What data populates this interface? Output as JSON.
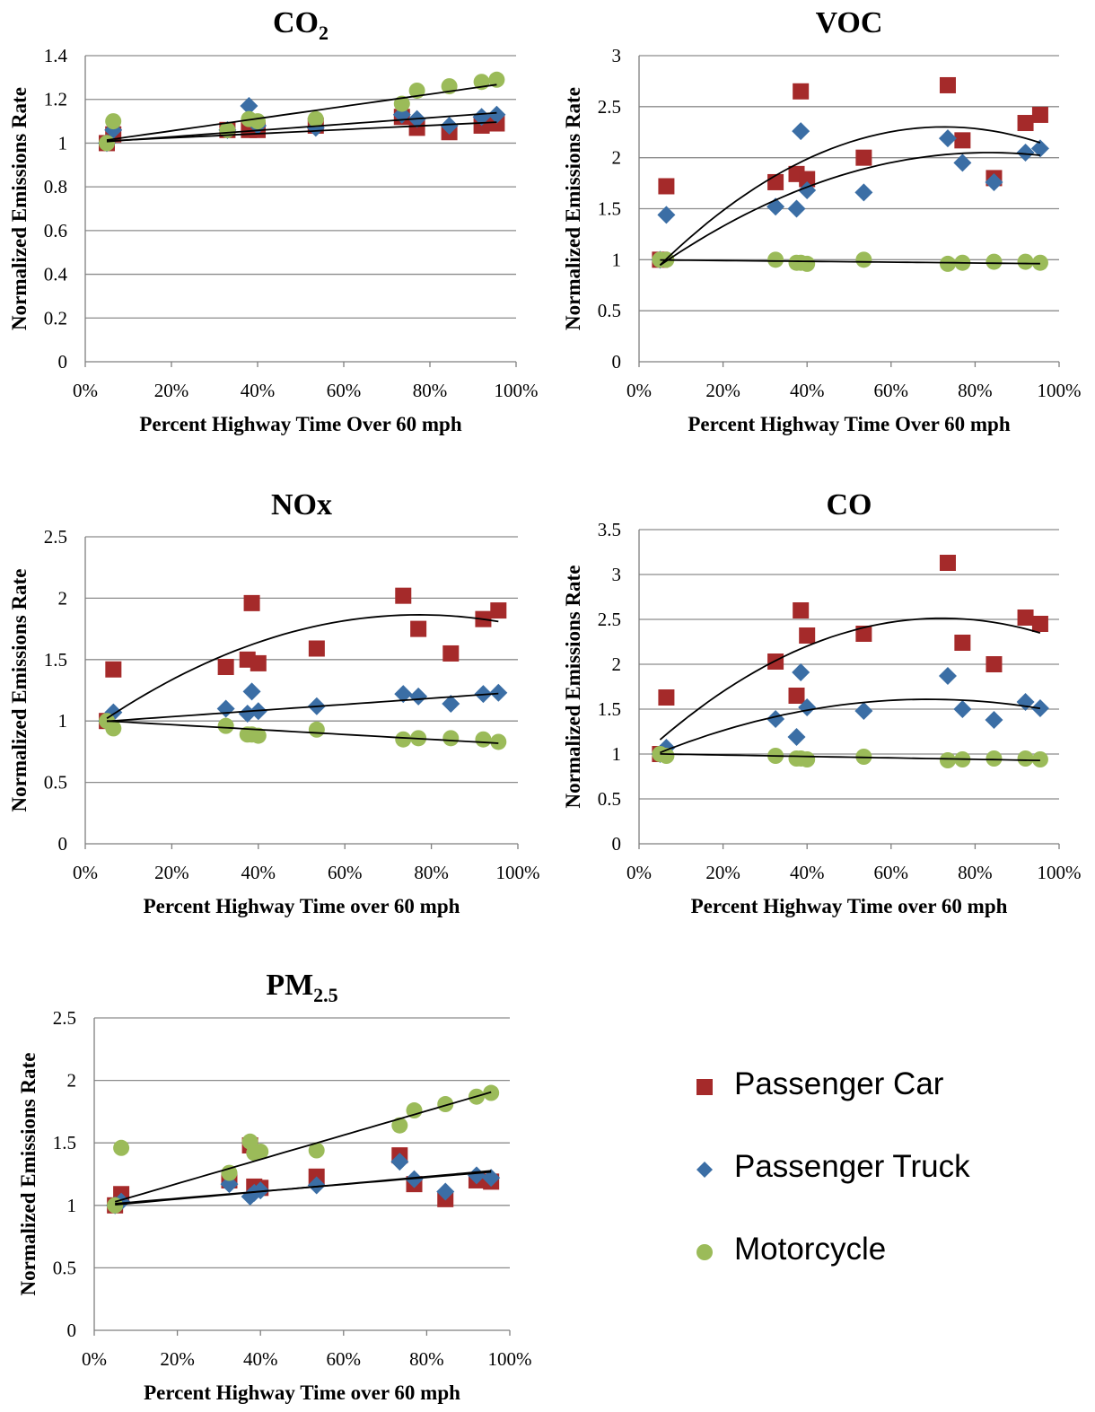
{
  "colors": {
    "car": "#a52a2a",
    "truck": "#3b6ea5",
    "moto": "#9bbb59",
    "grid": "#8c8c8c",
    "trend": "#000000"
  },
  "legend": {
    "items": [
      {
        "key": "car",
        "label": "Passenger Car",
        "shape": "square"
      },
      {
        "key": "truck",
        "label": "Passenger Truck",
        "shape": "diamond"
      },
      {
        "key": "moto",
        "label": "Motorcycle",
        "shape": "circle"
      }
    ]
  },
  "chart_data": [
    {
      "type": "scatter",
      "title": "CO",
      "title_sub": "2",
      "xlabel": "Percent Highway Time Over 60 mph",
      "ylabel": "Normalized Emissions Rate",
      "xlim": [
        0,
        100
      ],
      "ylim": [
        0,
        1.4
      ],
      "ystep": 0.2,
      "xticks": [
        "0%",
        "20%",
        "40%",
        "60%",
        "80%",
        "100%"
      ],
      "yticks": [
        "0",
        "0.2",
        "0.4",
        "0.6",
        "0.8",
        "1",
        "1.2",
        "1.4"
      ],
      "x": [
        5,
        6.5,
        33,
        38,
        40,
        53.5,
        73.5,
        77,
        84.5,
        92,
        95.5
      ],
      "series": [
        {
          "name": "Passenger Car",
          "key": "car",
          "y": [
            1.0,
            1.04,
            1.06,
            1.06,
            1.06,
            1.08,
            1.12,
            1.07,
            1.05,
            1.08,
            1.09
          ],
          "trend": [
            1.005,
            0.095,
            0
          ]
        },
        {
          "name": "Passenger Truck",
          "key": "truck",
          "y": [
            1.0,
            1.06,
            1.06,
            1.17,
            1.08,
            1.07,
            1.13,
            1.11,
            1.08,
            1.12,
            1.13
          ],
          "trend": [
            1.0,
            0.145,
            0
          ]
        },
        {
          "name": "Motorcycle",
          "key": "moto",
          "y": [
            1.0,
            1.1,
            1.06,
            1.11,
            1.1,
            1.11,
            1.18,
            1.24,
            1.26,
            1.28,
            1.29
          ],
          "trend": [
            1.0,
            0.28,
            0
          ]
        }
      ]
    },
    {
      "type": "scatter",
      "title": "VOC",
      "title_sub": "",
      "xlabel": "Percent Highway Time Over 60 mph",
      "ylabel": "Normalized Emissions Rate",
      "xlim": [
        0,
        100
      ],
      "ylim": [
        0,
        3
      ],
      "ystep": 0.5,
      "xticks": [
        "0%",
        "20%",
        "40%",
        "60%",
        "80%",
        "100%"
      ],
      "yticks": [
        "0",
        "0.5",
        "1",
        "1.5",
        "2",
        "2.5",
        "3"
      ],
      "x": [
        5,
        6.5,
        32.5,
        37.5,
        38.5,
        40,
        53.5,
        73.5,
        77,
        84.5,
        92,
        95.5
      ],
      "series": [
        {
          "name": "Passenger Car",
          "key": "car",
          "y": [
            1.0,
            1.72,
            1.76,
            1.84,
            2.65,
            1.79,
            2.0,
            2.71,
            2.17,
            1.8,
            2.34,
            2.42
          ],
          "trend": [
            0.74,
            4.3,
            -2.96
          ]
        },
        {
          "name": "Passenger Truck",
          "key": "truck",
          "y": [
            1.0,
            1.44,
            1.52,
            1.5,
            2.26,
            1.68,
            1.66,
            2.19,
            1.95,
            1.76,
            2.05,
            2.09
          ],
          "trend": [
            0.8,
            3.0,
            -1.8
          ]
        },
        {
          "name": "Motorcycle",
          "key": "moto",
          "y": [
            1.0,
            1.0,
            1.0,
            0.97,
            0.97,
            0.96,
            1.0,
            0.96,
            0.97,
            0.98,
            0.98,
            0.97
          ],
          "trend": [
            1.0,
            -0.04,
            0
          ]
        }
      ]
    },
    {
      "type": "scatter",
      "title": "NOx",
      "title_sub": "",
      "xlabel": "Percent Highway Time over 60 mph",
      "ylabel": "Normalized Emissions Rate",
      "xlim": [
        0,
        100
      ],
      "ylim": [
        0,
        2.5
      ],
      "ystep": 0.5,
      "xticks": [
        "0%",
        "20%",
        "40%",
        "60%",
        "80%",
        "100%"
      ],
      "yticks": [
        "0",
        "0.5",
        "1",
        "1.5",
        "2",
        "2.5"
      ],
      "x": [
        5,
        6.5,
        32.5,
        37.5,
        38.5,
        40,
        53.5,
        73.5,
        77,
        84.5,
        92,
        95.5
      ],
      "series": [
        {
          "name": "Passenger Car",
          "key": "car",
          "y": [
            1.0,
            1.42,
            1.44,
            1.5,
            1.96,
            1.47,
            1.59,
            2.02,
            1.75,
            1.55,
            1.83,
            1.9
          ],
          "trend": [
            0.9,
            2.5,
            -1.62
          ]
        },
        {
          "name": "Passenger Truck",
          "key": "truck",
          "y": [
            1.0,
            1.07,
            1.1,
            1.06,
            1.24,
            1.08,
            1.12,
            1.22,
            1.2,
            1.14,
            1.22,
            1.23
          ],
          "trend": [
            0.985,
            0.25,
            0
          ]
        },
        {
          "name": "Motorcycle",
          "key": "moto",
          "y": [
            1.0,
            0.94,
            0.96,
            0.89,
            0.89,
            0.88,
            0.93,
            0.85,
            0.86,
            0.86,
            0.85,
            0.83
          ],
          "trend": [
            1.01,
            -0.2,
            0
          ]
        }
      ]
    },
    {
      "type": "scatter",
      "title": "CO",
      "title_sub": "",
      "xlabel": "Percent Highway Time over 60 mph",
      "ylabel": "Normalized Emissions Rate",
      "xlim": [
        0,
        100
      ],
      "ylim": [
        0,
        3.5
      ],
      "ystep": 0.5,
      "xticks": [
        "0%",
        "20%",
        "40%",
        "60%",
        "80%",
        "100%"
      ],
      "yticks": [
        "0",
        "0.5",
        "1",
        "1.5",
        "2",
        "2.5",
        "3",
        "3.5"
      ],
      "x": [
        5,
        6.5,
        32.5,
        37.5,
        38.5,
        40,
        53.5,
        73.5,
        77,
        84.5,
        92,
        95.5
      ],
      "series": [
        {
          "name": "Passenger Car",
          "key": "car",
          "y": [
            1.0,
            1.63,
            2.03,
            1.65,
            2.6,
            2.32,
            2.34,
            3.13,
            2.24,
            2.0,
            2.52,
            2.45
          ],
          "trend": [
            0.95,
            4.33,
            -3.0
          ]
        },
        {
          "name": "Passenger Truck",
          "key": "truck",
          "y": [
            1.0,
            1.07,
            1.39,
            1.19,
            1.91,
            1.52,
            1.48,
            1.87,
            1.5,
            1.38,
            1.58,
            1.51
          ],
          "trend": [
            0.92,
            2.0,
            -1.45
          ]
        },
        {
          "name": "Motorcycle",
          "key": "moto",
          "y": [
            1.0,
            0.98,
            0.98,
            0.95,
            0.95,
            0.94,
            0.97,
            0.93,
            0.94,
            0.95,
            0.95,
            0.94
          ],
          "trend": [
            1.005,
            -0.08,
            0
          ]
        }
      ]
    },
    {
      "type": "scatter",
      "title": "PM",
      "title_sub": "2.5",
      "xlabel": "Percent Highway Time over 60 mph",
      "ylabel": "Normalized Emissions Rate",
      "xlim": [
        0,
        100
      ],
      "ylim": [
        0,
        2.5
      ],
      "ystep": 0.5,
      "xticks": [
        "0%",
        "20%",
        "40%",
        "60%",
        "80%",
        "100%"
      ],
      "yticks": [
        "0",
        "0.5",
        "1",
        "1.5",
        "2",
        "2.5"
      ],
      "x": [
        5,
        6.5,
        32.5,
        37.5,
        38.5,
        40,
        53.5,
        73.5,
        77,
        84.5,
        92,
        95.5
      ],
      "series": [
        {
          "name": "Passenger Car",
          "key": "car",
          "y": [
            1.0,
            1.09,
            1.2,
            1.48,
            1.15,
            1.14,
            1.23,
            1.4,
            1.17,
            1.05,
            1.2,
            1.19
          ],
          "trend": [
            1.0,
            0.28,
            0
          ]
        },
        {
          "name": "Passenger Truck",
          "key": "truck",
          "y": [
            1.0,
            1.03,
            1.17,
            1.07,
            1.1,
            1.12,
            1.16,
            1.35,
            1.21,
            1.11,
            1.24,
            1.22
          ],
          "trend": [
            0.99,
            0.3,
            0
          ]
        },
        {
          "name": "Motorcycle",
          "key": "moto",
          "y": [
            1.0,
            1.46,
            1.26,
            1.51,
            1.42,
            1.43,
            1.44,
            1.64,
            1.76,
            1.81,
            1.87,
            1.9
          ],
          "trend": [
            0.98,
            0.97,
            0
          ]
        }
      ]
    }
  ]
}
